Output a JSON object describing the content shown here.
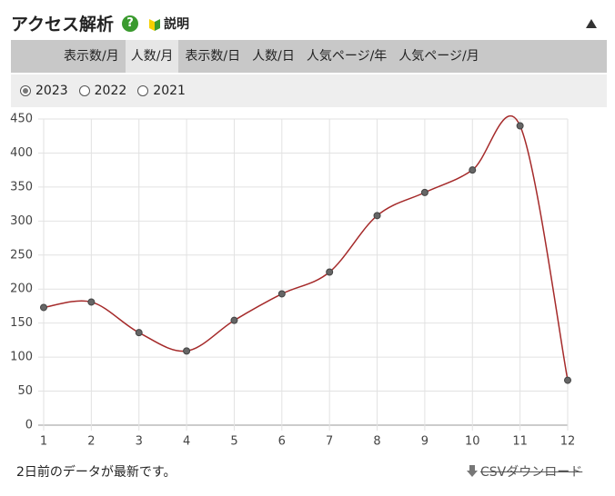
{
  "header": {
    "title": "アクセス解析",
    "help_icon": "?",
    "help_label": "説明"
  },
  "tabs": [
    "表示数/月",
    "人数/月",
    "表示数/日",
    "人数/日",
    "人気ページ/年",
    "人気ページ/月"
  ],
  "active_tab": 1,
  "years": [
    "2023",
    "2022",
    "2021"
  ],
  "selected_year": 0,
  "chart_data": {
    "type": "line",
    "x": [
      1,
      2,
      3,
      4,
      5,
      6,
      7,
      8,
      9,
      10,
      11,
      12
    ],
    "series": [
      {
        "name": "2023",
        "color": "#a52a2a",
        "values": [
          173,
          181,
          136,
          109,
          154,
          193,
          225,
          308,
          342,
          375,
          440,
          66
        ]
      }
    ],
    "xlim": [
      1,
      12
    ],
    "xticks": [
      1,
      2,
      3,
      4,
      5,
      6,
      7,
      8,
      9,
      10,
      11,
      12
    ],
    "ylim": [
      0,
      450
    ],
    "yticks": [
      0,
      50,
      100,
      150,
      200,
      250,
      300,
      350,
      400,
      450
    ],
    "grid": true
  },
  "footer": {
    "note": "2日前のデータが最新です。",
    "download": "CSVダウンロード"
  }
}
